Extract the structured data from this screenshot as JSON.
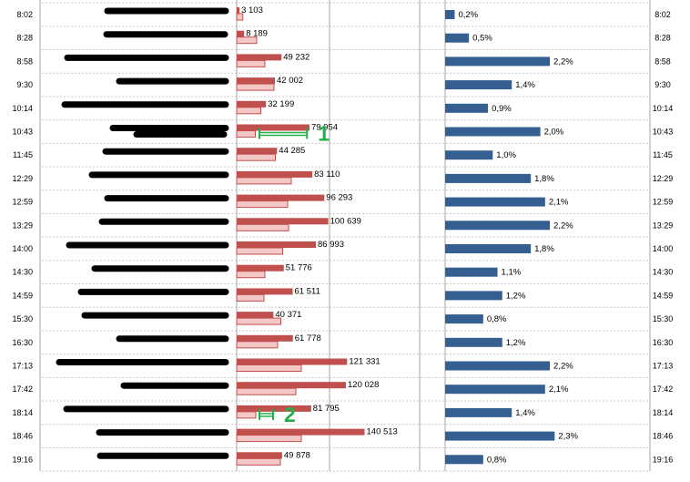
{
  "chart_data": {
    "type": "bar",
    "categories": [
      "8:02",
      "8:28",
      "8:58",
      "9:30",
      "10:14",
      "10:43",
      "11:45",
      "12:29",
      "12:59",
      "13:29",
      "14:00",
      "14:30",
      "14:59",
      "15:30",
      "16:30",
      "17:13",
      "17:42",
      "18:14",
      "18:46",
      "19:16"
    ],
    "series": [
      {
        "values": [
          3103,
          8189,
          49232,
          42002,
          32199,
          79954,
          44285,
          83110,
          96293,
          100639,
          86993,
          51776,
          61511,
          40371,
          61778,
          121331,
          120028,
          81795,
          140513,
          49878
        ],
        "labels": [
          "3 103",
          "8 189",
          "49 232",
          "42 002",
          "32 199",
          "79 954",
          "44 285",
          "83 110",
          "96 293",
          "100 639",
          "86 993",
          "51 776",
          "61 511",
          "40 371",
          "61 778",
          "121 331",
          "120 028",
          "81 795",
          "140 513",
          "49 878"
        ],
        "color": "#c0504d"
      },
      {
        "values": [
          6800,
          22000,
          31000,
          41000,
          26500,
          20500,
          42500,
          60000,
          56000,
          57000,
          50500,
          31000,
          30000,
          48500,
          45000,
          71000,
          65000,
          21000,
          71000,
          48000
        ],
        "color": "#f5c8c8"
      },
      {
        "values": [
          0.2,
          0.5,
          2.2,
          1.4,
          0.9,
          2.0,
          1.0,
          1.8,
          2.1,
          2.2,
          1.8,
          1.1,
          1.2,
          0.8,
          1.2,
          2.2,
          2.1,
          1.4,
          2.3,
          0.8
        ],
        "labels": [
          "0,2%",
          "0,5%",
          "2,2%",
          "1,4%",
          "0,9%",
          "2,0%",
          "1,0%",
          "1,8%",
          "2,1%",
          "2,2%",
          "1,8%",
          "1,1%",
          "1,2%",
          "0,8%",
          "1,2%",
          "2,2%",
          "2,1%",
          "1,4%",
          "2,3%",
          "0,8%"
        ],
        "color": "#365f91"
      }
    ],
    "annotations": [
      {
        "text": "1",
        "row": "10:43",
        "from": 25000,
        "to": 75000
      },
      {
        "text": "2",
        "row": "18:14",
        "from": 25000,
        "to": 40000
      }
    ],
    "grid": true
  },
  "colors": {
    "bar_dark": "#c0504d",
    "bar_light": "#f5c8c8",
    "bar_blue": "#365f91",
    "annotation": "#22b04a",
    "grid": "#a6a6a6",
    "redaction": "#000000"
  }
}
